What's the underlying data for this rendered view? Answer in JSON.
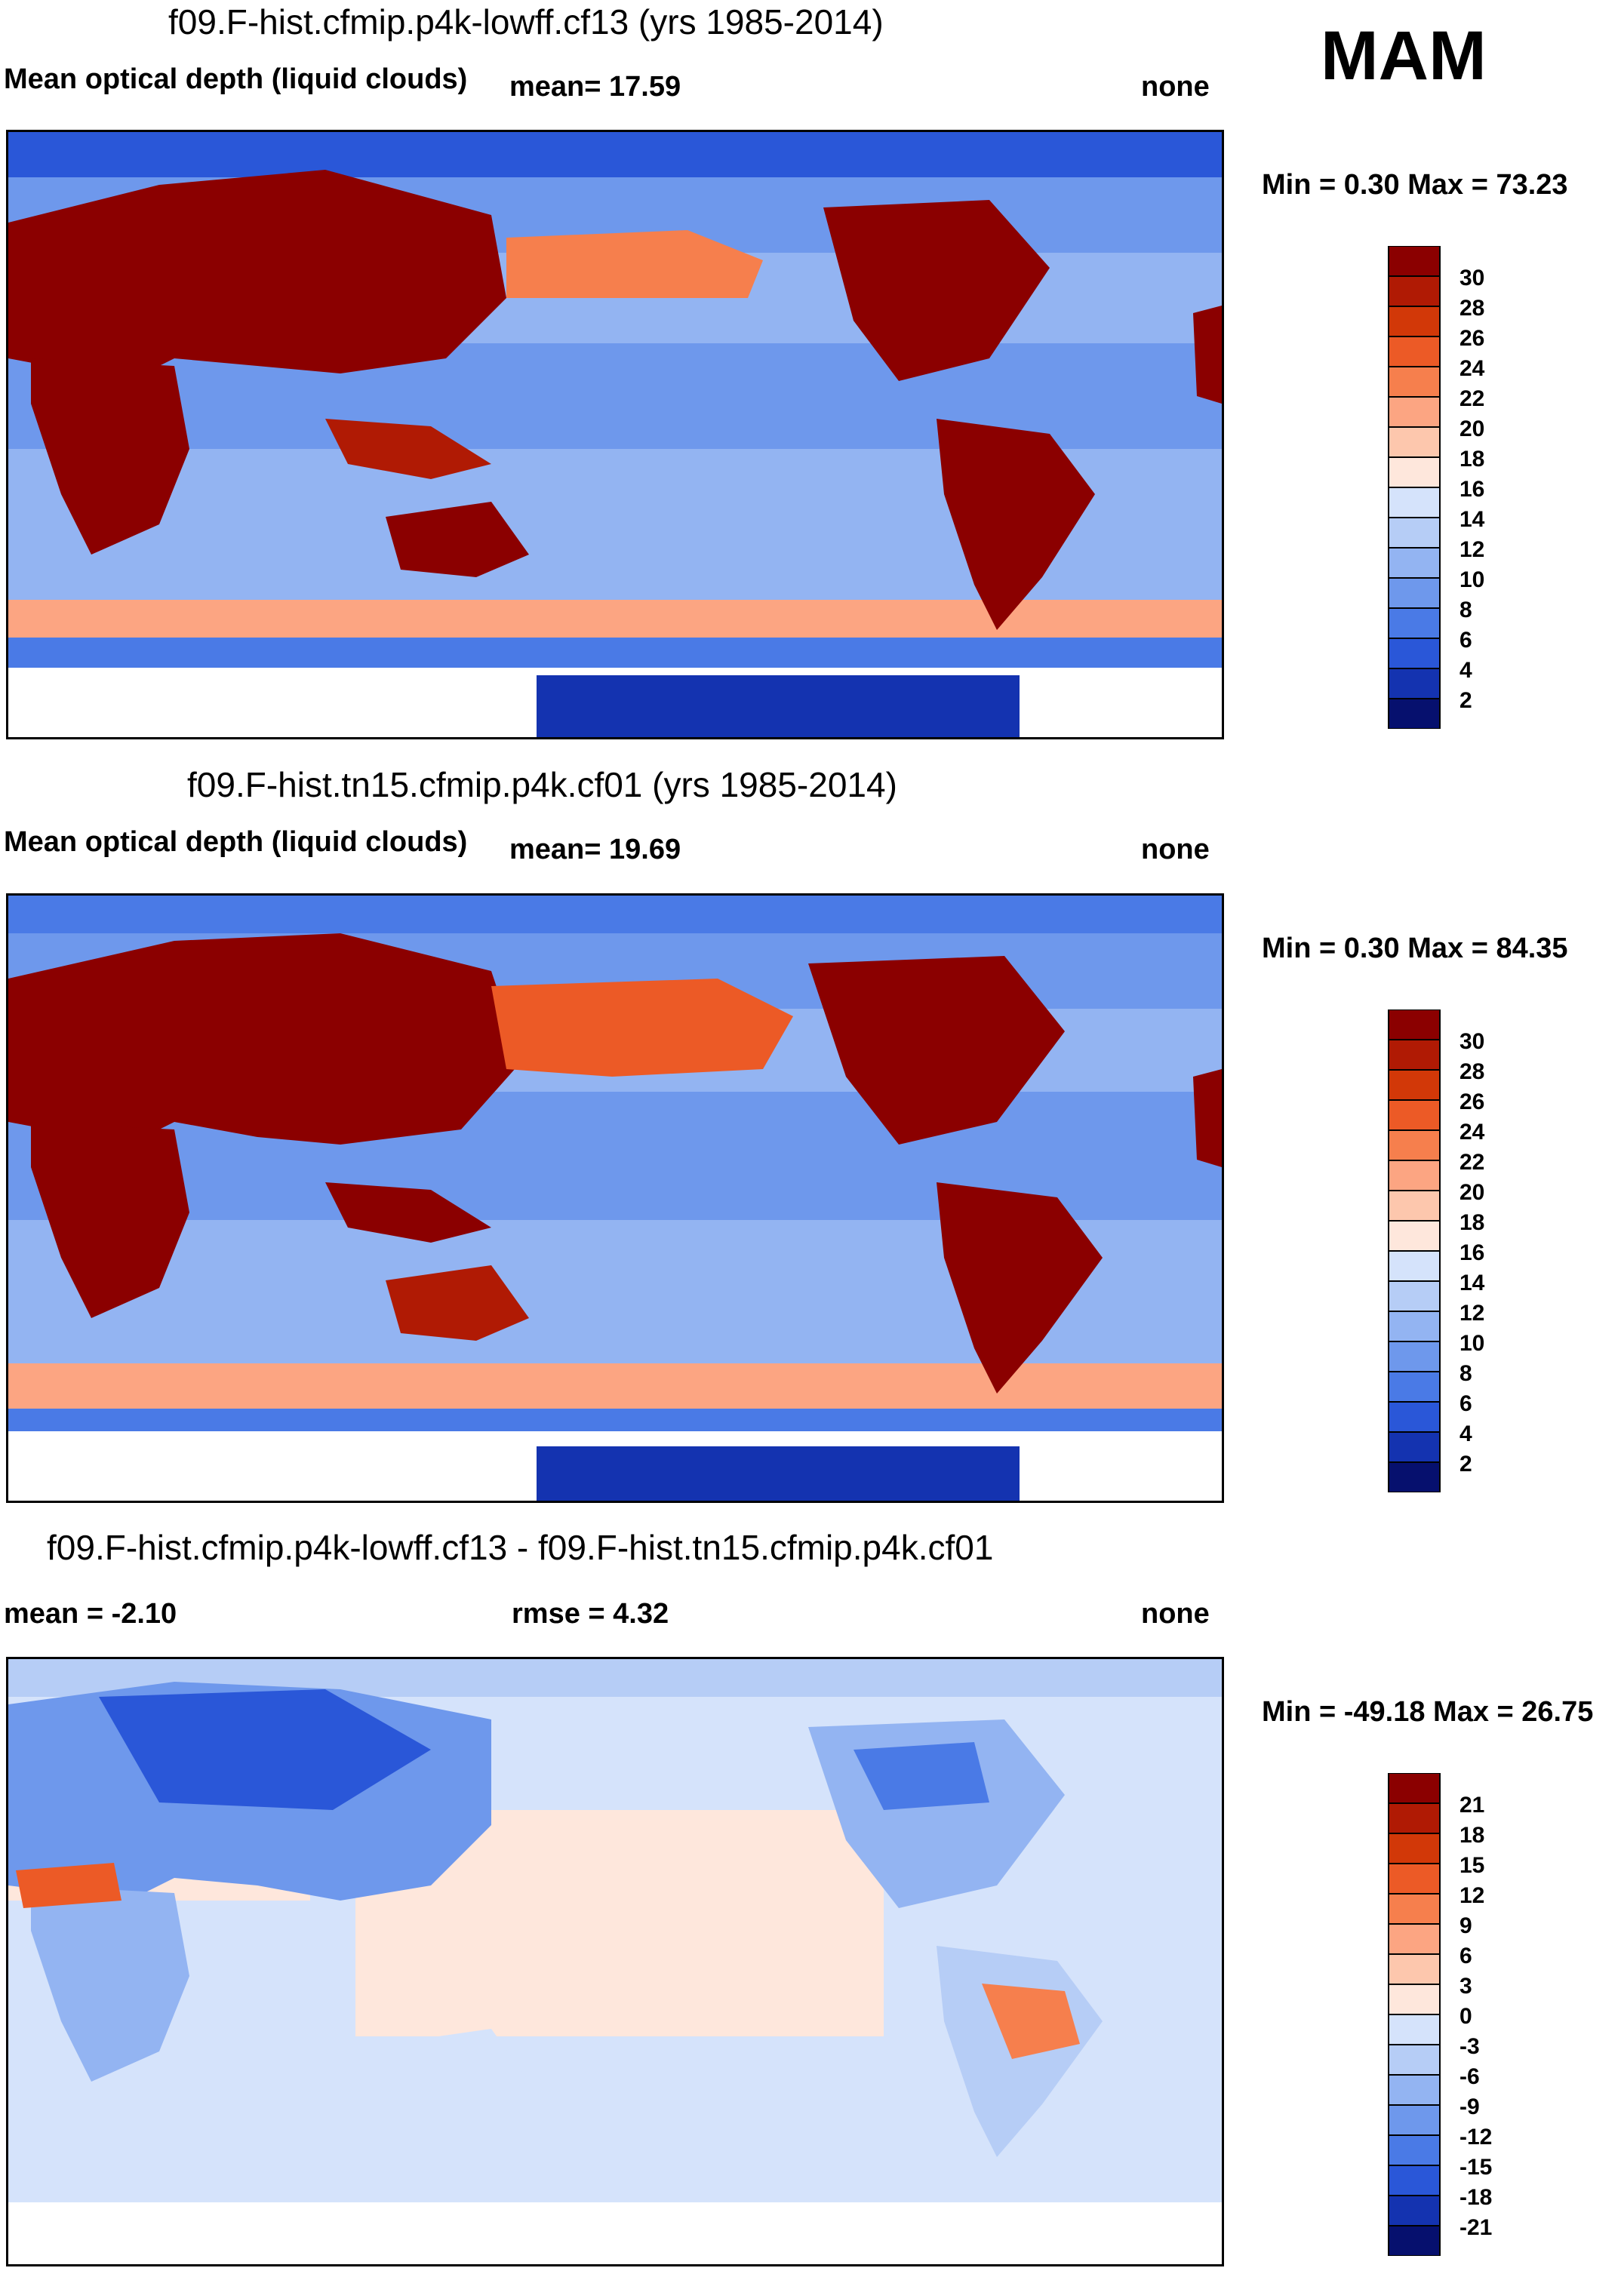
{
  "season": "MAM",
  "panels": [
    {
      "title": "f09.F-hist.cfmip.p4k-lowff.cf13 (yrs 1985-2014)",
      "left_label": "Mean optical depth (liquid clouds)",
      "mid_label": "mean=  17.59",
      "right_label": "none",
      "minmax": "Min =   0.30 Max =  73.23"
    },
    {
      "title": "f09.F-hist.tn15.cfmip.p4k.cf01 (yrs 1985-2014)",
      "left_label": "Mean optical depth (liquid clouds)",
      "mid_label": "mean=  19.69",
      "right_label": "none",
      "minmax": "Min =   0.30 Max =  84.35"
    },
    {
      "title": "f09.F-hist.cfmip.p4k-lowff.cf13 - f09.F-hist.tn15.cfmip.p4k.cf01",
      "left_label": "mean =  -2.10",
      "mid_label": "rmse =   4.32",
      "right_label": "none",
      "minmax": "Min = -49.18 Max =  26.75"
    }
  ],
  "chart_data": [
    {
      "type": "heatmap",
      "title": "f09.F-hist.cfmip.p4k-lowff.cf13 (yrs 1985-2014)",
      "variable": "Mean optical depth (liquid clouds)",
      "mean": 17.59,
      "min": 0.3,
      "max": 73.23,
      "colorbar_levels": [
        30,
        28,
        26,
        24,
        22,
        20,
        18,
        16,
        14,
        12,
        10,
        8,
        6,
        4,
        2
      ],
      "colorbar_colors": [
        "#8b0000",
        "#b01a04",
        "#d23808",
        "#ec5a26",
        "#f67f4d",
        "#fca582",
        "#fdc7ad",
        "#fee7dc",
        "#d5e3fb",
        "#b6cdf6",
        "#93b4f2",
        "#6e98ec",
        "#4a7ae6",
        "#2a57d8",
        "#1433b0",
        "#06106e"
      ]
    },
    {
      "type": "heatmap",
      "title": "f09.F-hist.tn15.cfmip.p4k.cf01 (yrs 1985-2014)",
      "variable": "Mean optical depth (liquid clouds)",
      "mean": 19.69,
      "min": 0.3,
      "max": 84.35,
      "colorbar_levels": [
        30,
        28,
        26,
        24,
        22,
        20,
        18,
        16,
        14,
        12,
        10,
        8,
        6,
        4,
        2
      ],
      "colorbar_colors": [
        "#8b0000",
        "#b01a04",
        "#d23808",
        "#ec5a26",
        "#f67f4d",
        "#fca582",
        "#fdc7ad",
        "#fee7dc",
        "#d5e3fb",
        "#b6cdf6",
        "#93b4f2",
        "#6e98ec",
        "#4a7ae6",
        "#2a57d8",
        "#1433b0",
        "#06106e"
      ]
    },
    {
      "type": "heatmap",
      "title": "f09.F-hist.cfmip.p4k-lowff.cf13 - f09.F-hist.tn15.cfmip.p4k.cf01",
      "mean": -2.1,
      "rmse": 4.32,
      "min": -49.18,
      "max": 26.75,
      "colorbar_levels": [
        21,
        18,
        15,
        12,
        9,
        6,
        3,
        0,
        -3,
        -6,
        -9,
        -12,
        -15,
        -18,
        -21
      ],
      "colorbar_colors": [
        "#8b0000",
        "#b01a04",
        "#d23808",
        "#ec5a26",
        "#f67f4d",
        "#fca582",
        "#fdc7ad",
        "#fee7dc",
        "#d5e3fb",
        "#b6cdf6",
        "#93b4f2",
        "#6e98ec",
        "#4a7ae6",
        "#2a57d8",
        "#1433b0",
        "#06106e"
      ]
    }
  ]
}
